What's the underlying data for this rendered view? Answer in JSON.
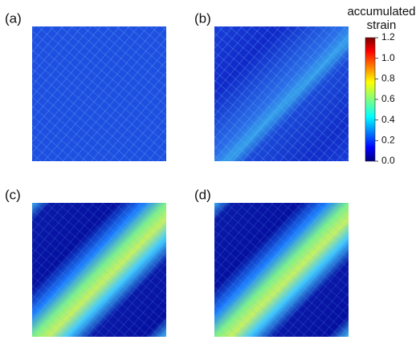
{
  "panels": [
    {
      "label": "(a)"
    },
    {
      "label": "(b)"
    },
    {
      "label": "(c)"
    },
    {
      "label": "(d)"
    }
  ],
  "colorbar": {
    "title": [
      "accumulated",
      "strain"
    ],
    "lim": [
      0,
      1.2
    ],
    "ticks": [
      {
        "value": 0,
        "label": "0.0"
      },
      0.2,
      0.4,
      0.6,
      0.8,
      {
        "value": 1,
        "label": "1.0"
      },
      1.2
    ]
  }
}
